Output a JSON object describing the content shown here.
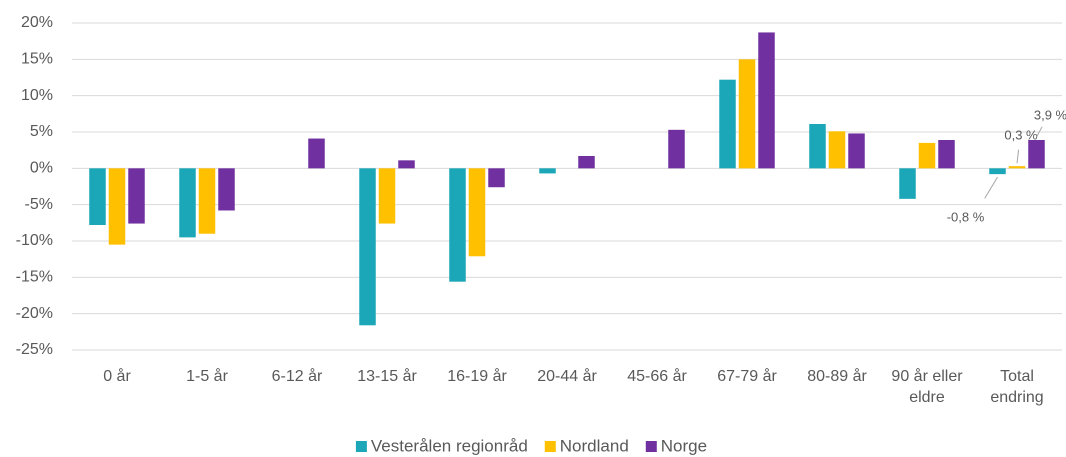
{
  "chart_data": {
    "type": "bar",
    "categories": [
      "0 år",
      "1-5 år",
      "6-12 år",
      "13-15 år",
      "16-19 år",
      "20-44 år",
      "45-66 år",
      "67-79 år",
      "80-89 år",
      "90 år eller eldre",
      "Total endring"
    ],
    "series": [
      {
        "name": "Vesterålen regionråd",
        "color": "#1ba7b8",
        "values": [
          -7.8,
          -9.5,
          null,
          -21.6,
          -15.6,
          -0.7,
          null,
          12.2,
          6.1,
          -4.2,
          -0.8
        ],
        "value_labels": [
          null,
          null,
          null,
          null,
          null,
          null,
          null,
          null,
          null,
          null,
          "-0,8 %"
        ]
      },
      {
        "name": "Nordland",
        "color": "#ffc000",
        "values": [
          -10.5,
          -9.0,
          null,
          -7.6,
          -12.1,
          null,
          null,
          15.0,
          5.1,
          3.5,
          0.3
        ],
        "value_labels": [
          null,
          null,
          null,
          null,
          null,
          null,
          null,
          null,
          null,
          null,
          "0,3 %"
        ]
      },
      {
        "name": "Norge",
        "color": "#7030a0",
        "values": [
          -7.6,
          -5.8,
          4.1,
          1.1,
          -2.6,
          1.7,
          5.3,
          18.7,
          4.8,
          3.9,
          3.9
        ],
        "value_labels": [
          null,
          null,
          null,
          null,
          null,
          null,
          null,
          null,
          null,
          null,
          "3,9 %"
        ]
      }
    ],
    "ylim": [
      -25,
      20
    ],
    "yticks": [
      {
        "value": -25,
        "label": "-25%"
      },
      {
        "value": -20,
        "label": "-20%"
      },
      {
        "value": -15,
        "label": "-15%"
      },
      {
        "value": -10,
        "label": "-10%"
      },
      {
        "value": -5,
        "label": "-5%"
      },
      {
        "value": 0,
        "label": "0%"
      },
      {
        "value": 5,
        "label": "5%"
      },
      {
        "value": 10,
        "label": "10%"
      },
      {
        "value": 15,
        "label": "15%"
      },
      {
        "value": 20,
        "label": "20%"
      }
    ],
    "grid": true,
    "legend": "bottom"
  }
}
